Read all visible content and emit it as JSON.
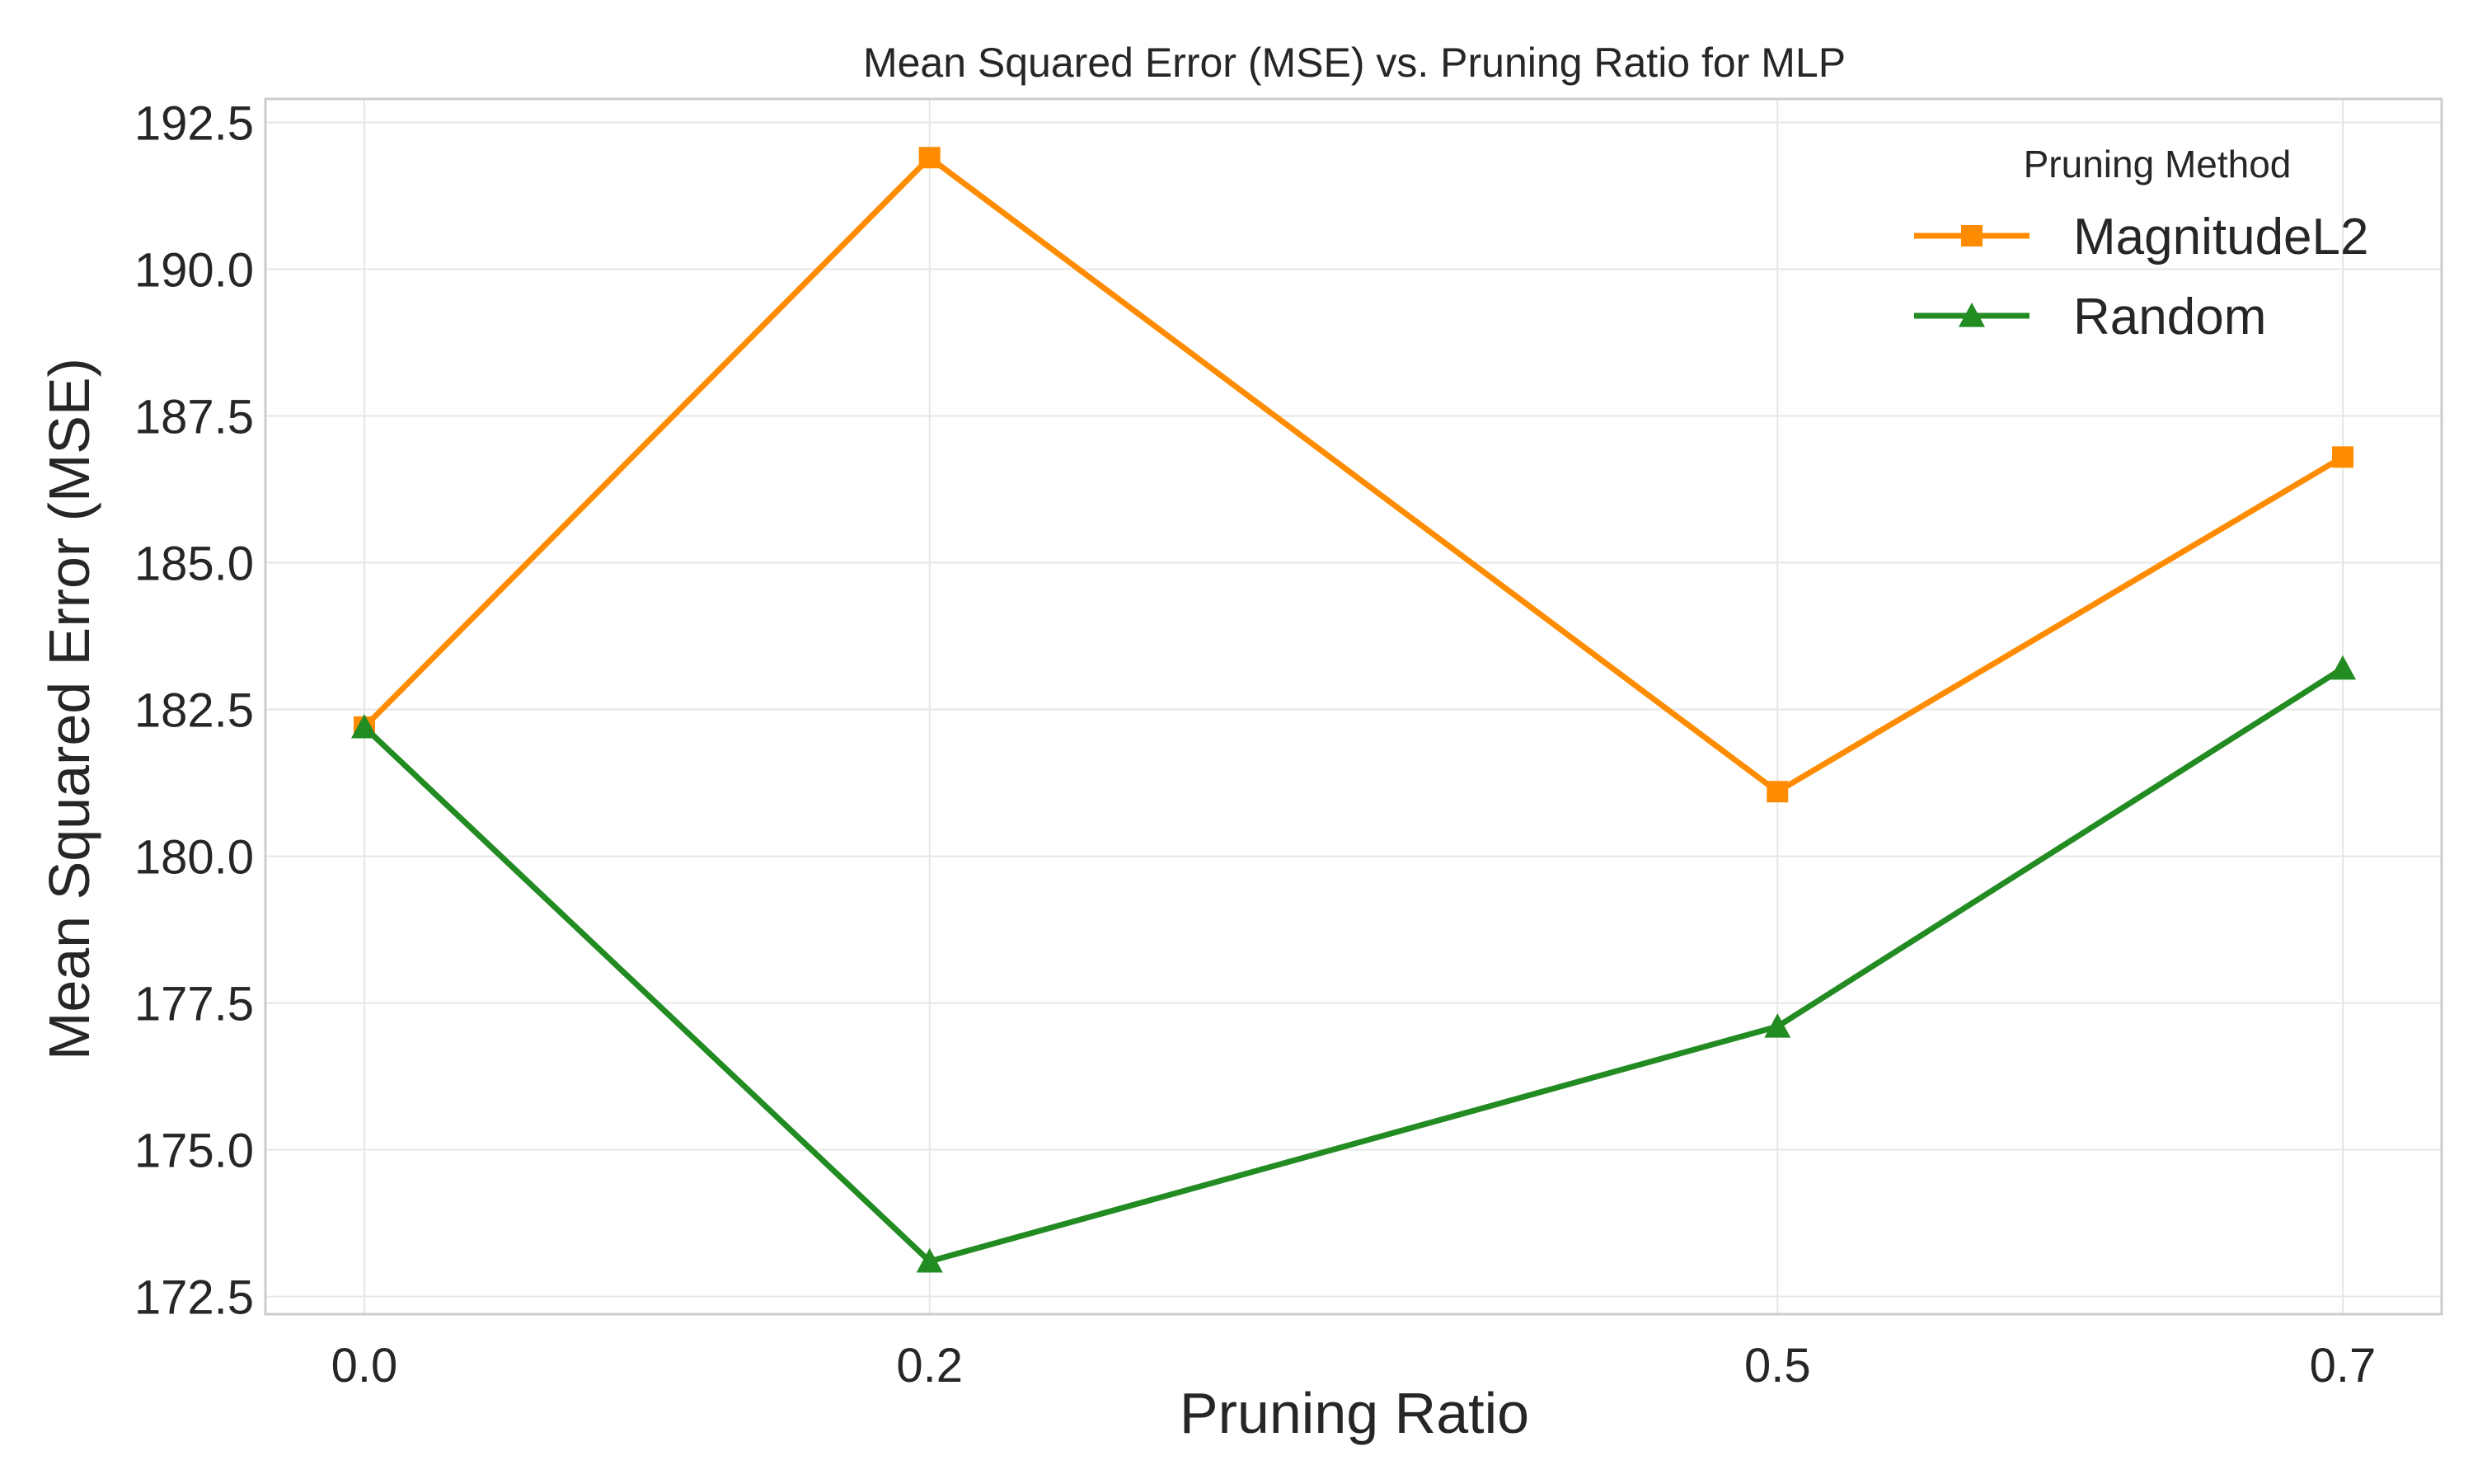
{
  "chart_data": {
    "type": "line",
    "title": "Mean Squared Error (MSE) vs. Pruning Ratio for MLP",
    "xlabel": "Pruning Ratio",
    "ylabel": "Mean Squared Error (MSE)",
    "x": [
      0.0,
      0.2,
      0.5,
      0.7
    ],
    "x_tick_labels": [
      "0.0",
      "0.2",
      "0.5",
      "0.7"
    ],
    "y_ticks": [
      172.5,
      175.0,
      177.5,
      180.0,
      182.5,
      185.0,
      187.5,
      190.0,
      192.5
    ],
    "y_tick_labels": [
      "172.5",
      "175.0",
      "177.5",
      "180.0",
      "182.5",
      "185.0",
      "187.5",
      "190.0",
      "192.5"
    ],
    "xlim": [
      -0.035,
      0.735
    ],
    "ylim": [
      172.2,
      192.9
    ],
    "grid": true,
    "legend": {
      "title": "Pruning Method",
      "placement": "top-right"
    },
    "series": [
      {
        "name": "MagnitudeL2",
        "marker": "square",
        "color": "#ff8c00",
        "values": [
          182.2,
          191.9,
          181.1,
          186.8
        ]
      },
      {
        "name": "Random",
        "marker": "triangle",
        "color": "#228b22",
        "values": [
          182.2,
          173.1,
          177.1,
          183.2
        ]
      }
    ]
  }
}
